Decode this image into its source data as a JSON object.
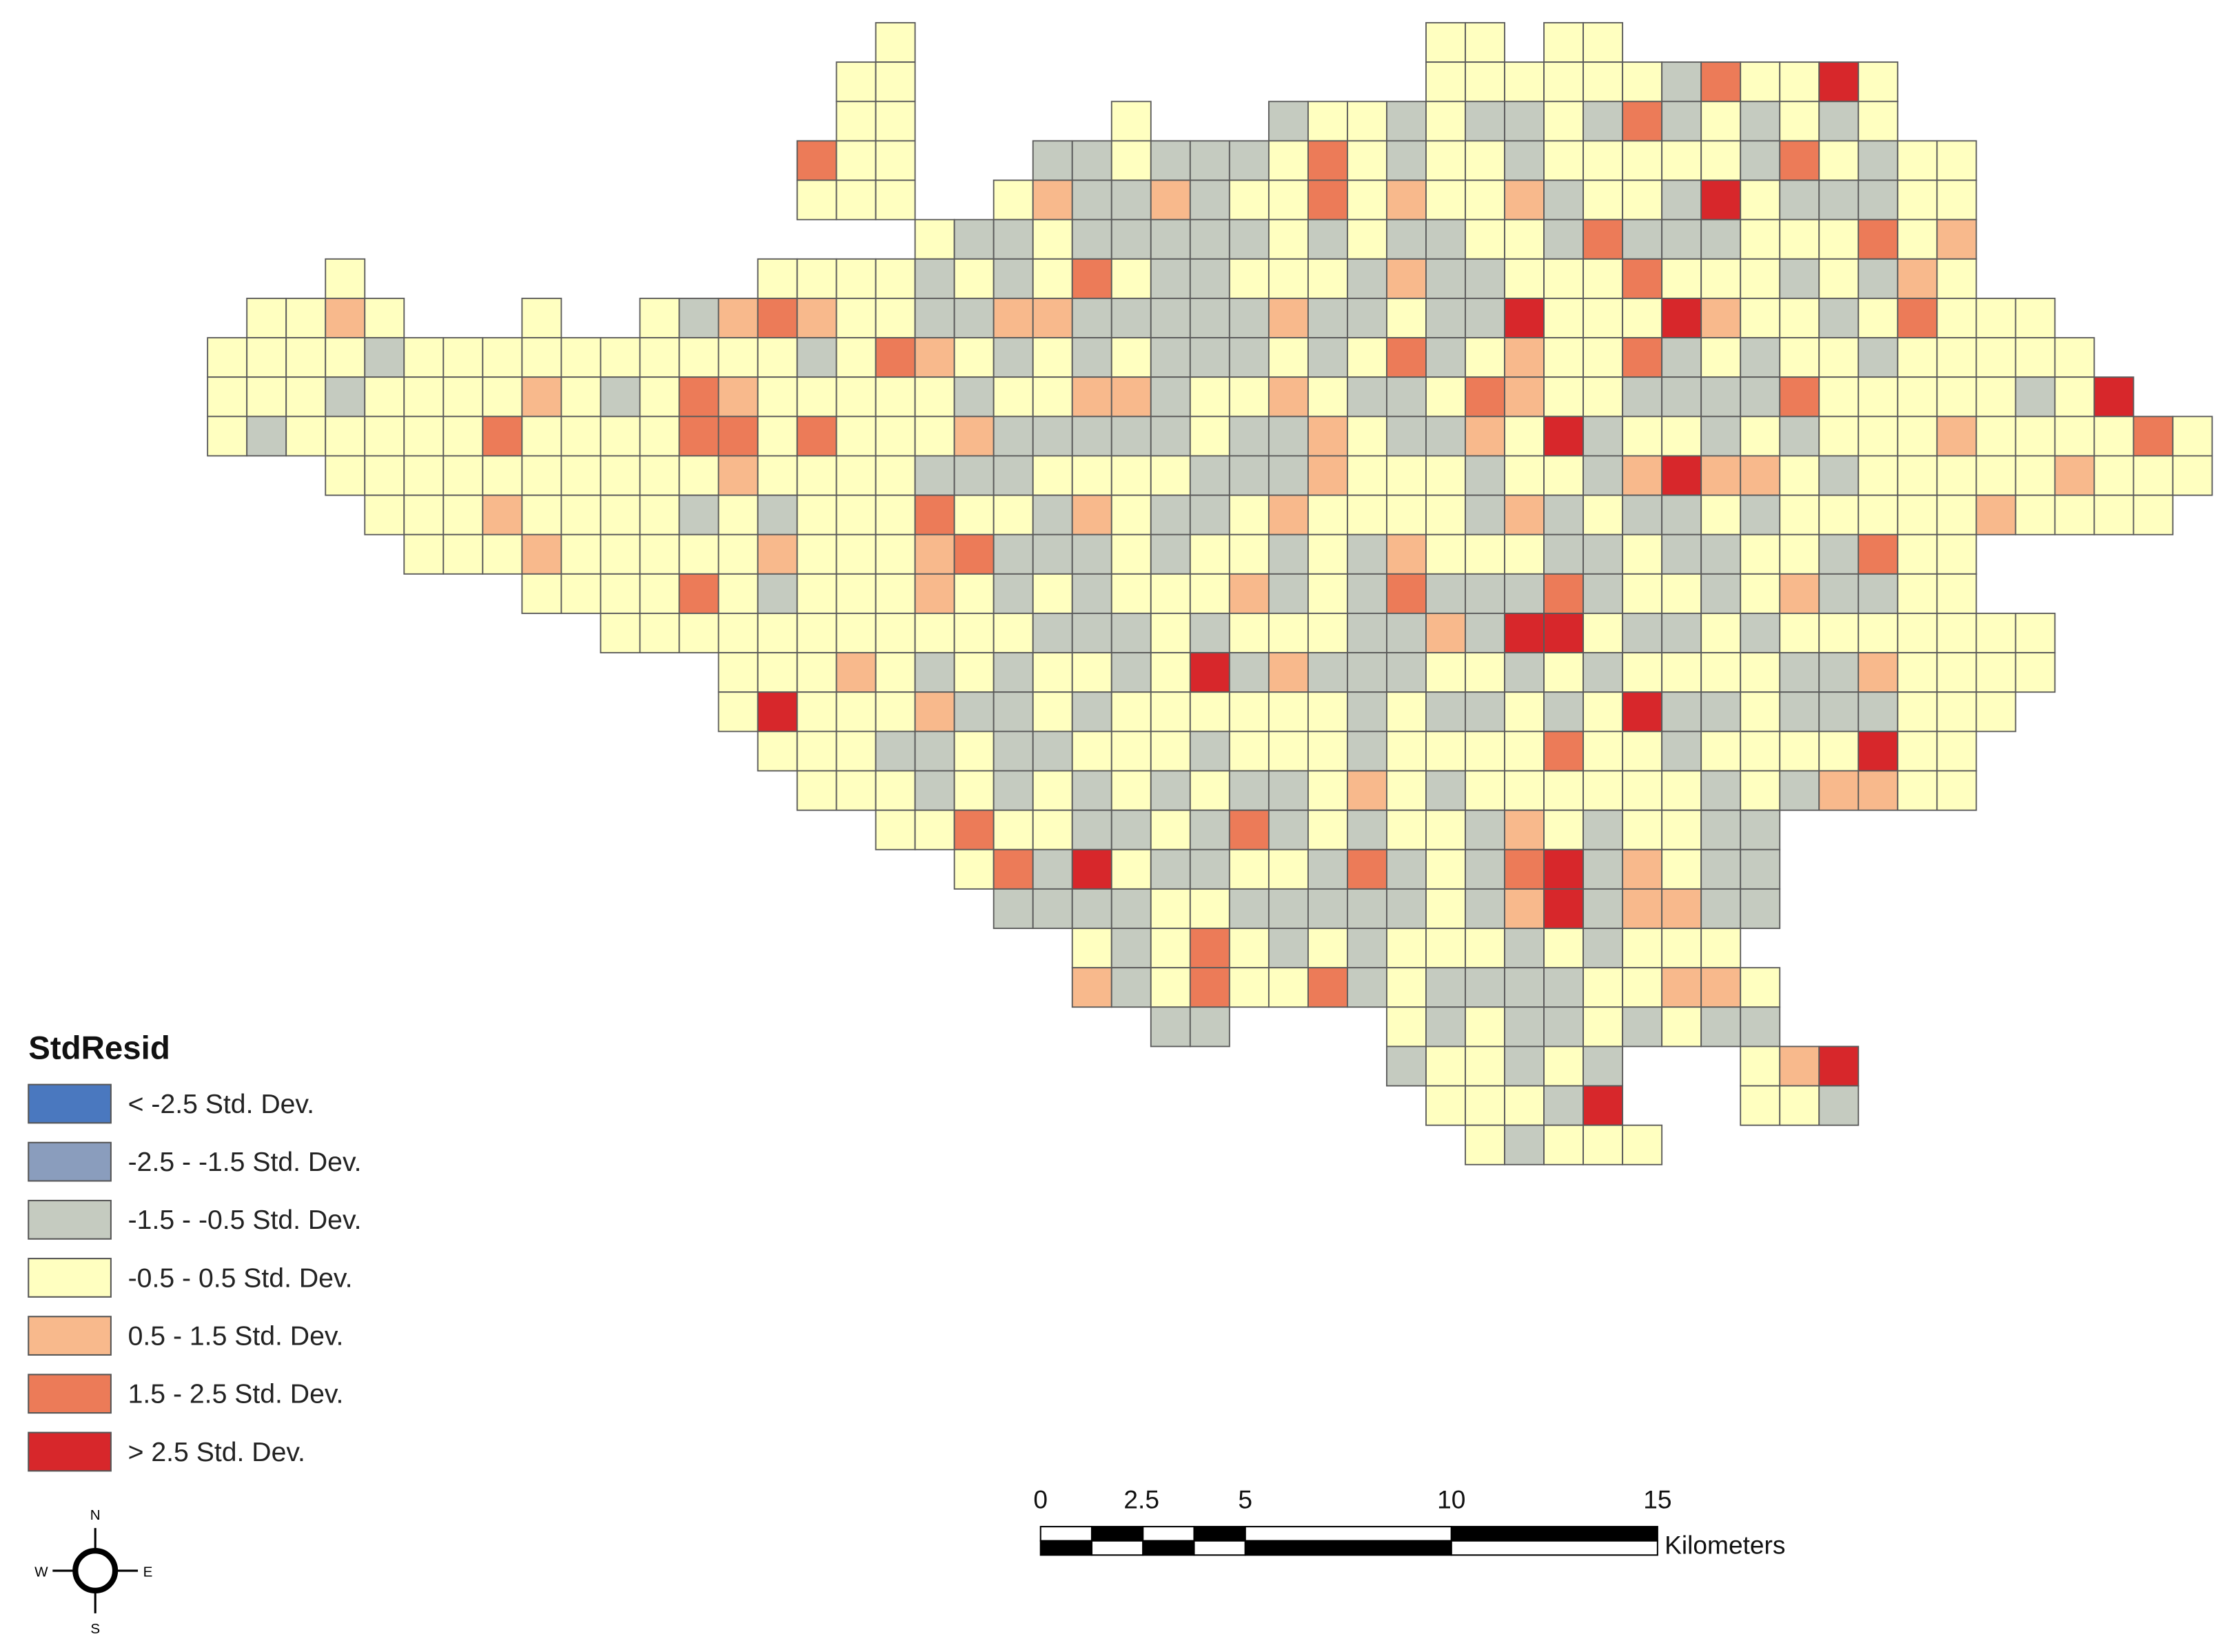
{
  "legend": {
    "title": "StdResid",
    "items": [
      {
        "label": "< -2.5 Std. Dev.",
        "color": "#4a78bf"
      },
      {
        "label": "-2.5 - -1.5 Std. Dev.",
        "color": "#8a9dbd"
      },
      {
        "label": "-1.5 - -0.5 Std. Dev.",
        "color": "#c5cbc0"
      },
      {
        "label": "-0.5 - 0.5 Std. Dev.",
        "color": "#ffffc0"
      },
      {
        "label": "0.5 - 1.5 Std. Dev.",
        "color": "#f8b98c"
      },
      {
        "label": "1.5 - 2.5 Std. Dev.",
        "color": "#ec7b58"
      },
      {
        "label": "> 2.5 Std. Dev.",
        "color": "#d7272b"
      }
    ]
  },
  "scale_bar": {
    "ticks": [
      "0",
      "2.5",
      "5",
      "10",
      "15"
    ],
    "unit": "Kilometers"
  },
  "compass": {
    "n": "N",
    "e": "E",
    "s": "S",
    "w": "W"
  }
}
